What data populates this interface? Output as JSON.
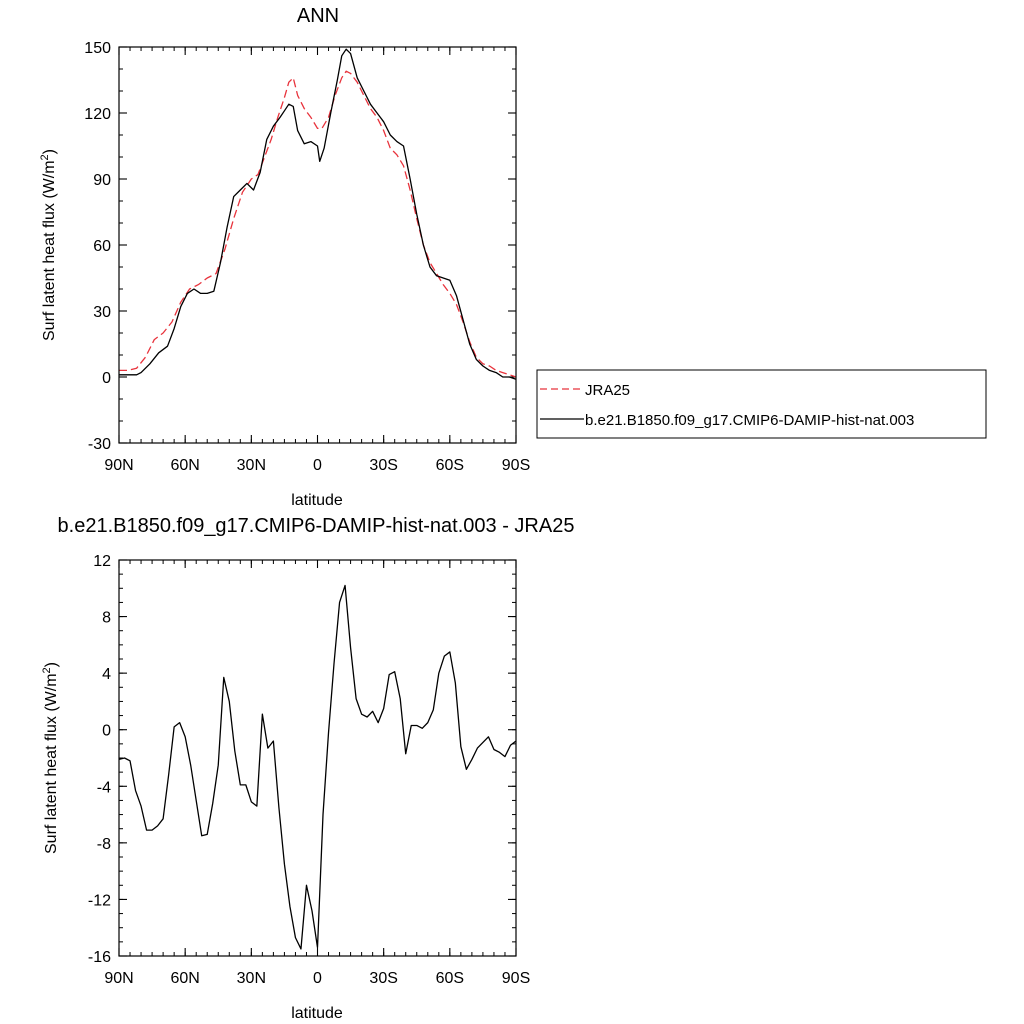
{
  "chart_data": [
    {
      "type": "line",
      "title": "ANN",
      "xlabel": "latitude",
      "ylabel": "Surf latent heat flux (W/m",
      "ylabel_sup": "2",
      "ylabel_close": ")",
      "xlim": [
        90,
        -90
      ],
      "ylim": [
        -30,
        150
      ],
      "xticks": [
        {
          "v": 90,
          "label": "90N"
        },
        {
          "v": 60,
          "label": "60N"
        },
        {
          "v": 30,
          "label": "30N"
        },
        {
          "v": 0,
          "label": "0"
        },
        {
          "v": -30,
          "label": "30S"
        },
        {
          "v": -60,
          "label": "60S"
        },
        {
          "v": -90,
          "label": "90S"
        }
      ],
      "yticks": [
        {
          "v": 150,
          "label": "150"
        },
        {
          "v": 120,
          "label": "120"
        },
        {
          "v": 90,
          "label": "90"
        },
        {
          "v": 60,
          "label": "60"
        },
        {
          "v": 30,
          "label": "30"
        },
        {
          "v": 0,
          "label": "0"
        },
        {
          "v": -30,
          "label": "-30"
        }
      ],
      "legend_position": "right",
      "series": [
        {
          "name": "JRA25",
          "color": "#e8333c",
          "dash": "dashed",
          "points": [
            [
              90,
              3
            ],
            [
              86,
              3
            ],
            [
              82,
              4
            ],
            [
              78,
              9
            ],
            [
              74,
              17
            ],
            [
              70,
              20
            ],
            [
              66,
              25
            ],
            [
              62,
              34
            ],
            [
              58,
              40
            ],
            [
              54,
              42
            ],
            [
              50,
              45
            ],
            [
              46,
              47
            ],
            [
              42,
              58
            ],
            [
              38,
              72
            ],
            [
              34,
              84
            ],
            [
              30,
              90
            ],
            [
              27,
              92
            ],
            [
              24,
              100
            ],
            [
              21,
              108
            ],
            [
              18,
              118
            ],
            [
              15,
              127
            ],
            [
              13,
              134
            ],
            [
              11,
              136
            ],
            [
              9,
              128
            ],
            [
              6,
              122
            ],
            [
              3,
              118
            ],
            [
              0,
              113
            ],
            [
              -2,
              113
            ],
            [
              -5,
              118
            ],
            [
              -8,
              128
            ],
            [
              -11,
              136
            ],
            [
              -13,
              139
            ],
            [
              -15,
              138
            ],
            [
              -18,
              134
            ],
            [
              -21,
              128
            ],
            [
              -24,
              122
            ],
            [
              -27,
              118
            ],
            [
              -30,
              112
            ],
            [
              -33,
              104
            ],
            [
              -36,
              101
            ],
            [
              -39,
              96
            ],
            [
              -42,
              85
            ],
            [
              -45,
              72
            ],
            [
              -48,
              60
            ],
            [
              -51,
              52
            ],
            [
              -54,
              47
            ],
            [
              -57,
              42
            ],
            [
              -60,
              38
            ],
            [
              -63,
              33
            ],
            [
              -66,
              25
            ],
            [
              -69,
              16
            ],
            [
              -72,
              9
            ],
            [
              -75,
              6
            ],
            [
              -78,
              5
            ],
            [
              -81,
              3
            ],
            [
              -84,
              2
            ],
            [
              -87,
              1
            ],
            [
              -90,
              0
            ]
          ]
        },
        {
          "name": "b.e21.B1850.f09_g17.CMIP6-DAMIP-hist-nat.003",
          "color": "#000000",
          "dash": "solid",
          "points": [
            [
              90,
              1
            ],
            [
              86,
              1
            ],
            [
              82,
              1
            ],
            [
              80,
              2
            ],
            [
              76,
              6
            ],
            [
              72,
              11
            ],
            [
              68,
              14
            ],
            [
              65,
              22
            ],
            [
              62,
              32
            ],
            [
              59,
              38
            ],
            [
              56,
              40
            ],
            [
              53,
              38
            ],
            [
              50,
              38
            ],
            [
              47,
              39
            ],
            [
              44,
              52
            ],
            [
              41,
              68
            ],
            [
              38,
              82
            ],
            [
              35,
              85
            ],
            [
              32,
              88
            ],
            [
              29,
              85
            ],
            [
              26,
              93
            ],
            [
              23,
              108
            ],
            [
              20,
              114
            ],
            [
              17,
              118
            ],
            [
              15,
              121
            ],
            [
              13,
              124
            ],
            [
              11,
              123
            ],
            [
              9,
              112
            ],
            [
              6,
              106
            ],
            [
              3,
              107
            ],
            [
              0,
              105
            ],
            [
              -1,
              98
            ],
            [
              -3,
              104
            ],
            [
              -6,
              120
            ],
            [
              -9,
              135
            ],
            [
              -11,
              146
            ],
            [
              -13,
              149
            ],
            [
              -15,
              147
            ],
            [
              -18,
              136
            ],
            [
              -21,
              130
            ],
            [
              -24,
              124
            ],
            [
              -27,
              120
            ],
            [
              -30,
              116
            ],
            [
              -33,
              110
            ],
            [
              -36,
              107
            ],
            [
              -39,
              105
            ],
            [
              -42,
              90
            ],
            [
              -45,
              74
            ],
            [
              -48,
              60
            ],
            [
              -51,
              50
            ],
            [
              -54,
              46
            ],
            [
              -57,
              45
            ],
            [
              -60,
              44
            ],
            [
              -63,
              37
            ],
            [
              -66,
              26
            ],
            [
              -69,
              15
            ],
            [
              -72,
              8
            ],
            [
              -75,
              5
            ],
            [
              -78,
              3
            ],
            [
              -81,
              2
            ],
            [
              -84,
              0
            ],
            [
              -87,
              0
            ],
            [
              -90,
              -1
            ]
          ]
        }
      ]
    },
    {
      "type": "line",
      "title": "b.e21.B1850.f09_g17.CMIP6-DAMIP-hist-nat.003 - JRA25",
      "xlabel": "latitude",
      "ylabel": "Surf latent heat flux (W/m",
      "ylabel_sup": "2",
      "ylabel_close": ")",
      "xlim": [
        90,
        -90
      ],
      "ylim": [
        -16,
        12
      ],
      "xticks": [
        {
          "v": 90,
          "label": "90N"
        },
        {
          "v": 60,
          "label": "60N"
        },
        {
          "v": 30,
          "label": "30N"
        },
        {
          "v": 0,
          "label": "0"
        },
        {
          "v": -30,
          "label": "30S"
        },
        {
          "v": -60,
          "label": "60S"
        },
        {
          "v": -90,
          "label": "90S"
        }
      ],
      "yticks": [
        {
          "v": 12,
          "label": "12"
        },
        {
          "v": 8,
          "label": "8"
        },
        {
          "v": 4,
          "label": "4"
        },
        {
          "v": 0,
          "label": "0"
        },
        {
          "v": -4,
          "label": "-4"
        },
        {
          "v": -8,
          "label": "-8"
        },
        {
          "v": -12,
          "label": "-12"
        },
        {
          "v": -16,
          "label": "-16"
        }
      ],
      "series": [
        {
          "color": "#000000",
          "dash": "solid",
          "points": [
            [
              90,
              -2.1
            ],
            [
              87.5,
              -2.0
            ],
            [
              85,
              -2.2
            ],
            [
              82.5,
              -4.3
            ],
            [
              80,
              -5.4
            ],
            [
              77.5,
              -7.1
            ],
            [
              75,
              -7.1
            ],
            [
              72.5,
              -6.8
            ],
            [
              70,
              -6.3
            ],
            [
              67.5,
              -3.2
            ],
            [
              65,
              0.2
            ],
            [
              62.5,
              0.5
            ],
            [
              60,
              -0.5
            ],
            [
              57.5,
              -2.5
            ],
            [
              55,
              -5.0
            ],
            [
              52.5,
              -7.5
            ],
            [
              50,
              -7.4
            ],
            [
              47.5,
              -5.2
            ],
            [
              45,
              -2.5
            ],
            [
              42.5,
              3.7
            ],
            [
              40,
              2.0
            ],
            [
              37.5,
              -1.5
            ],
            [
              35,
              -3.9
            ],
            [
              32.5,
              -3.9
            ],
            [
              30,
              -5.1
            ],
            [
              27.5,
              -5.4
            ],
            [
              25,
              1.1
            ],
            [
              22.5,
              -1.3
            ],
            [
              20,
              -0.8
            ],
            [
              17.5,
              -5.5
            ],
            [
              15,
              -9.5
            ],
            [
              12.5,
              -12.5
            ],
            [
              10,
              -14.7
            ],
            [
              7.5,
              -15.5
            ],
            [
              5,
              -11.0
            ],
            [
              2.5,
              -12.8
            ],
            [
              0,
              -15.4
            ],
            [
              -2.5,
              -6.0
            ],
            [
              -5,
              -0.2
            ],
            [
              -7.5,
              4.7
            ],
            [
              -10,
              9.0
            ],
            [
              -12.5,
              10.2
            ],
            [
              -15,
              5.8
            ],
            [
              -17.5,
              2.2
            ],
            [
              -20,
              1.1
            ],
            [
              -22.5,
              0.9
            ],
            [
              -25,
              1.3
            ],
            [
              -27.5,
              0.5
            ],
            [
              -30,
              1.5
            ],
            [
              -32.5,
              3.9
            ],
            [
              -35,
              4.1
            ],
            [
              -37.5,
              2.2
            ],
            [
              -40,
              -1.7
            ],
            [
              -42.5,
              0.3
            ],
            [
              -45,
              0.3
            ],
            [
              -47.5,
              0.1
            ],
            [
              -50,
              0.5
            ],
            [
              -52.5,
              1.4
            ],
            [
              -55,
              4.0
            ],
            [
              -57.5,
              5.2
            ],
            [
              -60,
              5.5
            ],
            [
              -62.5,
              3.3
            ],
            [
              -65,
              -1.2
            ],
            [
              -67.5,
              -2.8
            ],
            [
              -70,
              -2.1
            ],
            [
              -72.5,
              -1.3
            ],
            [
              -75,
              -0.9
            ],
            [
              -77.5,
              -0.5
            ],
            [
              -80,
              -1.4
            ],
            [
              -82.5,
              -1.6
            ],
            [
              -85,
              -1.9
            ],
            [
              -87.5,
              -1.1
            ],
            [
              -90,
              -0.8
            ]
          ]
        }
      ]
    }
  ]
}
